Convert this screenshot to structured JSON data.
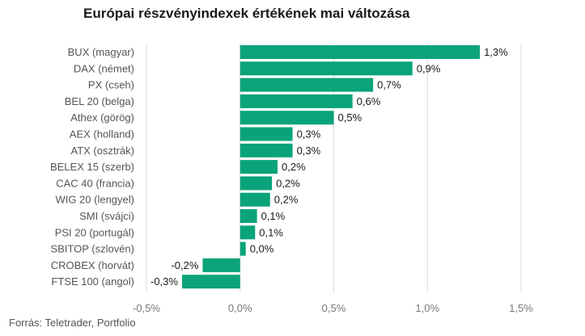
{
  "chart_data": {
    "type": "bar",
    "orientation": "horizontal",
    "title": "Európai részvényindexek értékének mai változása",
    "source": "Forrás: Teletrader, Portfolio",
    "categories": [
      "BUX (magyar)",
      "DAX (német)",
      "PX (cseh)",
      "BEL 20 (belga)",
      "Athex (görög)",
      "AEX (holland)",
      "ATX (osztrák)",
      "BELEX 15 (szerb)",
      "CAC 40 (francia)",
      "WIG 20 (lengyel)",
      "SMI (svájci)",
      "PSI 20 (portugál)",
      "SBITOP (szlovén)",
      "CROBEX (horvát)",
      "FTSE 100 (angol)"
    ],
    "values": [
      1.28,
      0.92,
      0.71,
      0.6,
      0.5,
      0.28,
      0.28,
      0.2,
      0.17,
      0.16,
      0.09,
      0.08,
      0.03,
      -0.2,
      -0.31
    ],
    "value_labels": [
      "1,3%",
      "0,9%",
      "0,7%",
      "0,6%",
      "0,5%",
      "0,3%",
      "0,3%",
      "0,2%",
      "0,2%",
      "0,2%",
      "0,1%",
      "0,1%",
      "0,0%",
      "-0,2%",
      "-0,3%"
    ],
    "xlim": [
      -0.5,
      1.5
    ],
    "xticks": [
      -0.5,
      0,
      0.5,
      1,
      1.5
    ],
    "xtick_labels": [
      "-0,5%",
      "0,0%",
      "0,5%",
      "1,0%",
      "1,5%"
    ],
    "grid": true,
    "bar_color": "#0aa37a",
    "grid_color": "#d9d9d9"
  }
}
